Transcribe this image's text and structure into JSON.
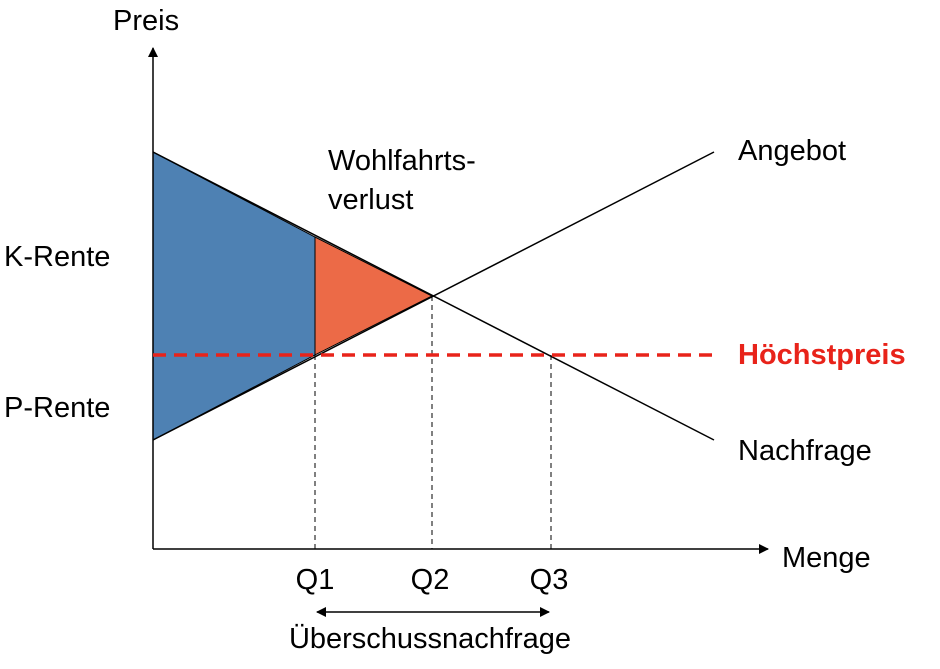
{
  "axes": {
    "y_label": "Preis",
    "x_label": "Menge"
  },
  "curves": {
    "supply_label": "Angebot",
    "demand_label": "Nachfrage"
  },
  "price_ceiling": {
    "label": "Höchstpreis",
    "color": "#e8231a"
  },
  "areas": {
    "welfare_loss_line1": "Wohlfahrts-",
    "welfare_loss_line2": "verlust",
    "consumer_surplus_label": "K-Rente",
    "producer_surplus_label": "P-Rente",
    "surplus_color": "#4e81b3",
    "welfare_loss_color": "#ec6a47"
  },
  "quantities": {
    "q1": "Q1",
    "q2": "Q2",
    "q3": "Q3",
    "excess_demand_label": "Überschussnachfrage"
  }
}
